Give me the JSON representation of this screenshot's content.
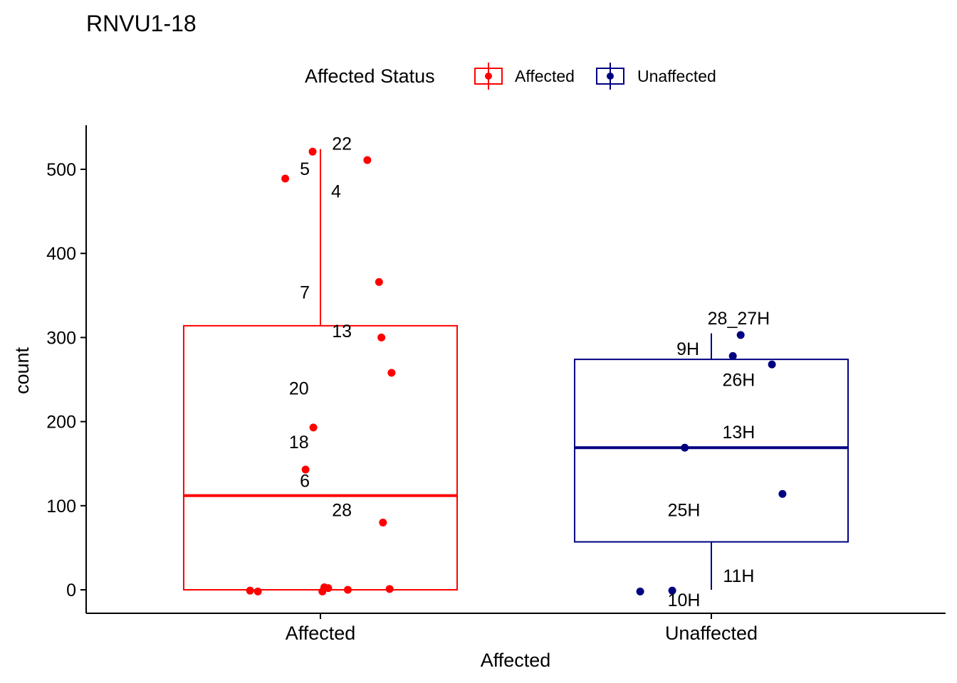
{
  "chart_data": {
    "type": "box",
    "title": "RNVU1-18",
    "xlabel": "Affected",
    "ylabel": "count",
    "ylim": [
      -28,
      550
    ],
    "y_ticks": [
      0,
      100,
      200,
      300,
      400,
      500
    ],
    "categories": [
      "Affected",
      "Unaffected"
    ],
    "legend": {
      "title": "Affected Status",
      "position": "top",
      "entries": [
        "Affected",
        "Unaffected"
      ]
    },
    "grid": false,
    "series": [
      {
        "name": "Affected",
        "color": "#FF0000",
        "box": {
          "q1": 0,
          "median": 112,
          "q3": 314,
          "whisker_low": 0,
          "whisker_high": 524
        },
        "points": [
          {
            "x": -0.02,
            "y": 521
          },
          {
            "x": 0.12,
            "y": 511
          },
          {
            "x": -0.09,
            "y": 489
          },
          {
            "x": 0.15,
            "y": 366
          },
          {
            "x": 0.156,
            "y": 300
          },
          {
            "x": 0.182,
            "y": 258
          },
          {
            "x": -0.018,
            "y": 193
          },
          {
            "x": -0.038,
            "y": 143
          },
          {
            "x": 0.16,
            "y": 80
          },
          {
            "x": -0.18,
            "y": -1
          },
          {
            "x": -0.16,
            "y": -2
          },
          {
            "x": 0.01,
            "y": 3
          },
          {
            "x": 0.02,
            "y": 2
          },
          {
            "x": 0.005,
            "y": -2
          },
          {
            "x": 0.07,
            "y": 0
          },
          {
            "x": 0.177,
            "y": 1
          }
        ],
        "labels": [
          {
            "text": "22",
            "x": 0.055,
            "y": 531
          },
          {
            "text": "5",
            "x": -0.04,
            "y": 501
          },
          {
            "text": "4",
            "x": 0.04,
            "y": 474
          },
          {
            "text": "7",
            "x": -0.04,
            "y": 354
          },
          {
            "text": "13",
            "x": 0.055,
            "y": 308
          },
          {
            "text": "20",
            "x": -0.055,
            "y": 240
          },
          {
            "text": "18",
            "x": -0.055,
            "y": 176
          },
          {
            "text": "6",
            "x": -0.04,
            "y": 130
          },
          {
            "text": "28",
            "x": 0.055,
            "y": 95
          }
        ]
      },
      {
        "name": "Unaffected",
        "color": "#000080",
        "box": {
          "q1": 57,
          "median": 169,
          "q3": 274,
          "whisker_low": 0,
          "whisker_high": 305
        },
        "points": [
          {
            "x": 0.075,
            "y": 303
          },
          {
            "x": 0.055,
            "y": 278
          },
          {
            "x": 0.155,
            "y": 268
          },
          {
            "x": -0.068,
            "y": 169
          },
          {
            "x": 0.182,
            "y": 114
          },
          {
            "x": -0.182,
            "y": -2
          },
          {
            "x": -0.1,
            "y": -1
          }
        ],
        "labels": [
          {
            "text": "28_27H",
            "x": 0.07,
            "y": 323
          },
          {
            "text": "9H",
            "x": -0.06,
            "y": 287
          },
          {
            "text": "26H",
            "x": 0.07,
            "y": 250
          },
          {
            "text": "13H",
            "x": 0.07,
            "y": 188
          },
          {
            "text": "25H",
            "x": -0.07,
            "y": 95
          },
          {
            "text": "11H",
            "x": 0.07,
            "y": 17
          },
          {
            "text": "10H",
            "x": -0.07,
            "y": -12
          }
        ]
      }
    ]
  }
}
